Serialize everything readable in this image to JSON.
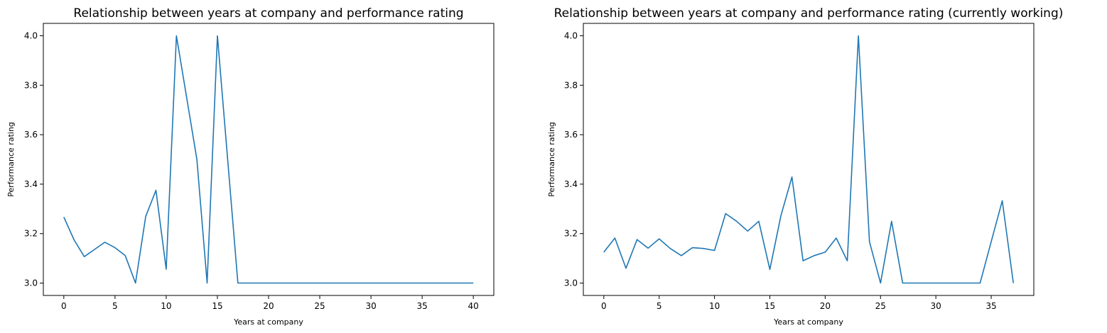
{
  "line_color": "#1f77b4",
  "chart_data": [
    {
      "type": "line",
      "title": "Relationship between years at company and performance rating",
      "xlabel": "Years at company",
      "ylabel": "Performance rating",
      "xlim": [
        -2,
        42
      ],
      "ylim": [
        2.95,
        4.05
      ],
      "xticks": [
        0,
        5,
        10,
        15,
        20,
        25,
        30,
        35,
        40
      ],
      "yticks": [
        3.0,
        3.2,
        3.4,
        3.6,
        3.8,
        4.0
      ],
      "ytick_labels": [
        "3.0",
        "3.2",
        "3.4",
        "3.6",
        "3.8",
        "4.0"
      ],
      "grid": false,
      "series": [
        {
          "x": [
            0,
            1,
            2,
            3,
            4,
            5,
            6,
            7,
            8,
            9,
            10,
            11,
            12,
            13,
            14,
            15,
            16,
            17,
            18,
            19,
            20,
            21,
            22,
            23,
            24,
            25,
            26,
            27,
            28,
            29,
            30,
            31,
            32,
            33,
            34,
            35,
            36,
            37,
            38,
            39,
            40
          ],
          "values": [
            3.267,
            3.175,
            3.107,
            3.136,
            3.165,
            3.143,
            3.111,
            3.0,
            3.27,
            3.375,
            3.056,
            4.0,
            3.75,
            3.5,
            3.0,
            4.0,
            3.5,
            3.0,
            3.0,
            3.0,
            3.0,
            3.0,
            3.0,
            3.0,
            3.0,
            3.0,
            3.0,
            3.0,
            3.0,
            3.0,
            3.0,
            3.0,
            3.0,
            3.0,
            3.0,
            3.0,
            3.0,
            3.0,
            3.0,
            3.0,
            3.0
          ]
        }
      ]
    },
    {
      "type": "line",
      "title": "Relationship between years at company and performance rating (currently working)",
      "xlabel": "Years at company",
      "ylabel": "Performance rating",
      "xlim": [
        -1.85,
        38.85
      ],
      "ylim": [
        2.95,
        4.05
      ],
      "xticks": [
        0,
        5,
        10,
        15,
        20,
        25,
        30,
        35
      ],
      "yticks": [
        3.0,
        3.2,
        3.4,
        3.6,
        3.8,
        4.0
      ],
      "ytick_labels": [
        "3.0",
        "3.2",
        "3.4",
        "3.6",
        "3.8",
        "4.0"
      ],
      "grid": false,
      "series": [
        {
          "x": [
            0,
            1,
            2,
            3,
            4,
            5,
            6,
            7,
            8,
            9,
            10,
            11,
            12,
            13,
            14,
            15,
            16,
            17,
            18,
            19,
            20,
            21,
            22,
            23,
            24,
            25,
            26,
            27,
            28,
            29,
            30,
            31,
            32,
            33,
            34,
            35,
            36,
            37
          ],
          "values": [
            3.125,
            3.182,
            3.06,
            3.176,
            3.141,
            3.179,
            3.14,
            3.111,
            3.143,
            3.14,
            3.132,
            3.281,
            3.25,
            3.21,
            3.25,
            3.055,
            3.273,
            3.429,
            3.09,
            3.111,
            3.125,
            3.182,
            3.09,
            4.0,
            3.167,
            3.0,
            3.25,
            3.0,
            3.0,
            3.0,
            3.0,
            3.0,
            3.0,
            3.0,
            3.0,
            3.167,
            3.333,
            3.0
          ]
        }
      ]
    }
  ]
}
